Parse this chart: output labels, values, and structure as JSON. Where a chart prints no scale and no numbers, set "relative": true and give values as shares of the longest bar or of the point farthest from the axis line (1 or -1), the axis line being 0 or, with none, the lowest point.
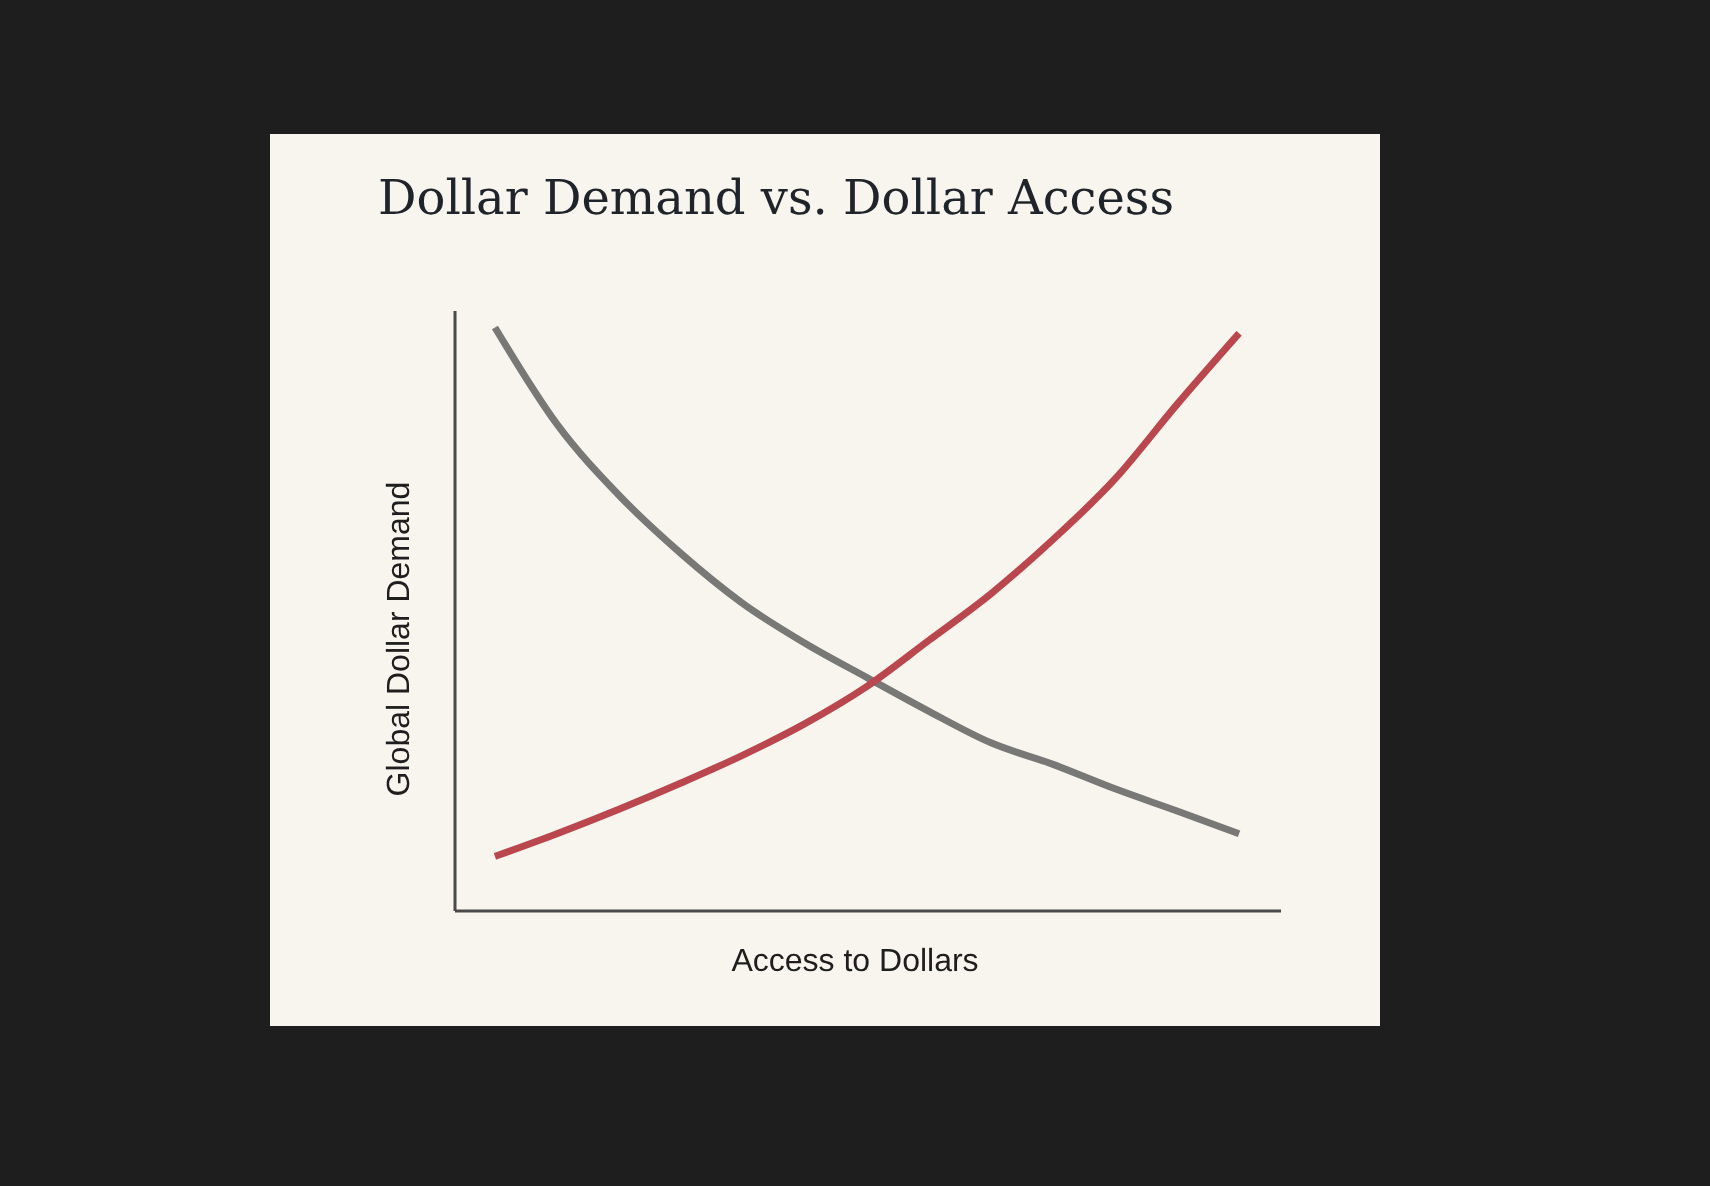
{
  "chart_data": {
    "type": "line",
    "title": "Dollar Demand vs. Dollar Access",
    "xlabel": "Access to Dollars",
    "ylabel": "Global Dollar Demand",
    "relative": true,
    "grid": false,
    "categories": [
      null,
      null,
      null,
      null,
      null,
      null,
      null,
      null,
      null,
      null,
      null,
      null,
      null
    ],
    "series": [
      {
        "color": "#787876",
        "values": [
          1.0,
          0.834,
          0.712,
          0.612,
          0.526,
          0.458,
          0.399,
          0.341,
          0.287,
          0.25,
          0.208,
          0.17,
          0.131
        ]
      },
      {
        "color": "#b9474d",
        "values": [
          0.092,
          0.131,
          0.173,
          0.218,
          0.266,
          0.32,
          0.384,
          0.463,
          0.543,
          0.636,
          0.74,
          0.868,
          0.99
        ]
      }
    ]
  }
}
